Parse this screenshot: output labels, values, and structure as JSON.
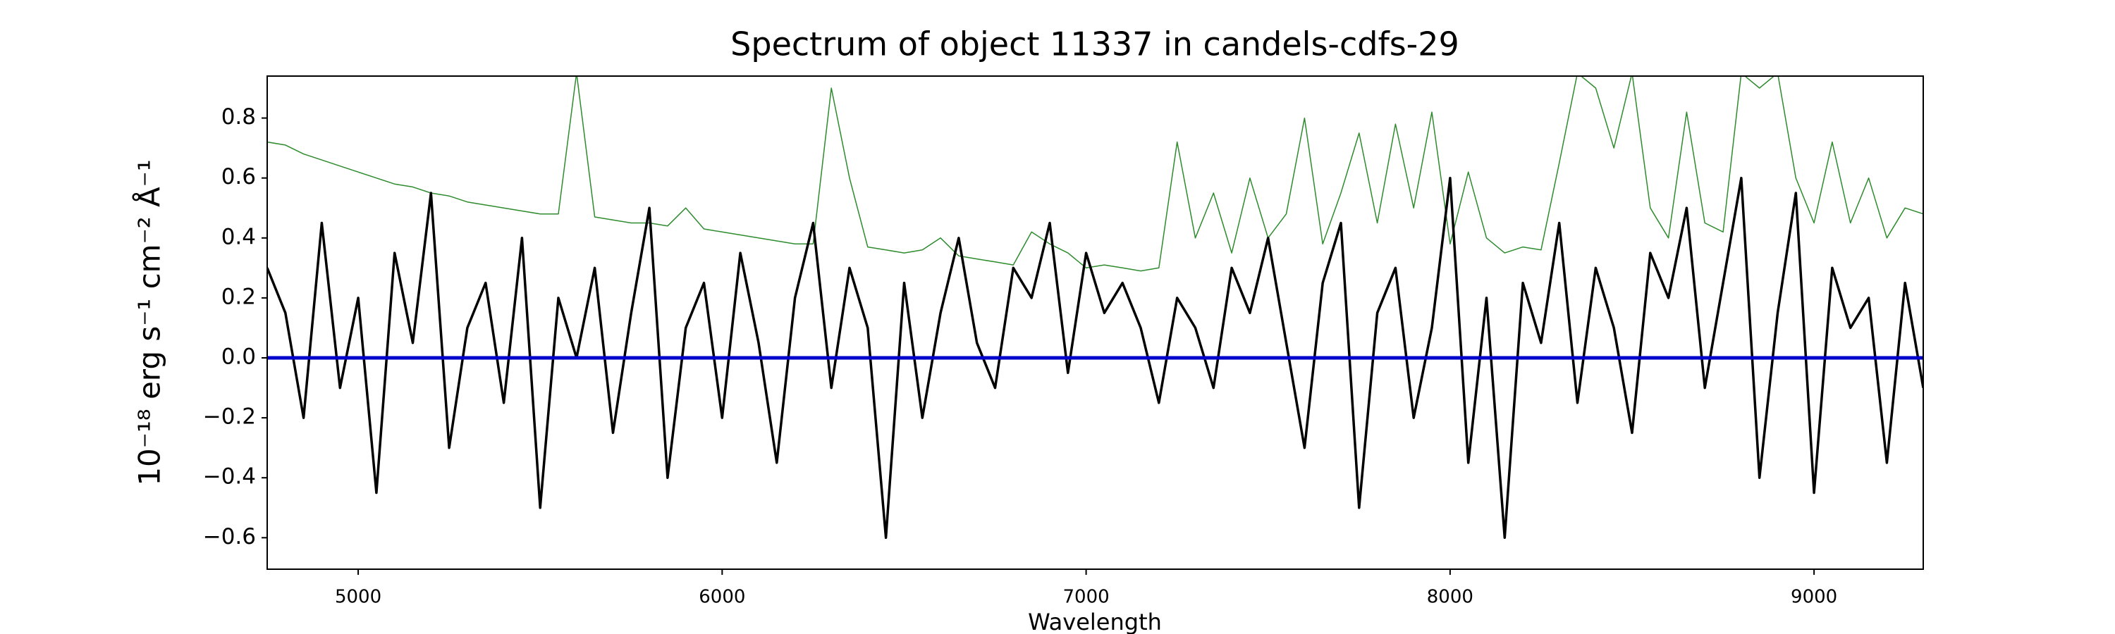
{
  "chart_data": {
    "type": "line",
    "title": "Spectrum of object 11337 in candels-cdfs-29",
    "xlabel": "Wavelength",
    "ylabel": "10⁻¹⁸ erg s⁻¹ cm⁻² Å⁻¹",
    "x": [
      4750,
      4800,
      4850,
      4900,
      4950,
      5000,
      5050,
      5100,
      5150,
      5200,
      5250,
      5300,
      5350,
      5400,
      5450,
      5500,
      5550,
      5600,
      5650,
      5700,
      5750,
      5800,
      5850,
      5900,
      5950,
      6000,
      6050,
      6100,
      6150,
      6200,
      6250,
      6300,
      6350,
      6400,
      6450,
      6500,
      6550,
      6600,
      6650,
      6700,
      6750,
      6800,
      6850,
      6900,
      6950,
      7000,
      7050,
      7100,
      7150,
      7200,
      7250,
      7300,
      7350,
      7400,
      7450,
      7500,
      7550,
      7600,
      7650,
      7700,
      7750,
      7800,
      7850,
      7900,
      7950,
      8000,
      8050,
      8100,
      8150,
      8200,
      8250,
      8300,
      8350,
      8400,
      8450,
      8500,
      8550,
      8600,
      8650,
      8700,
      8750,
      8800,
      8850,
      8900,
      8950,
      9000,
      9050,
      9100,
      9150,
      9200,
      9250,
      9300
    ],
    "series": [
      {
        "color": "#2e8b2e",
        "width": 1.5,
        "values": [
          0.72,
          0.71,
          0.68,
          0.66,
          0.64,
          0.62,
          0.6,
          0.58,
          0.57,
          0.55,
          0.54,
          0.52,
          0.51,
          0.5,
          0.49,
          0.48,
          0.48,
          0.95,
          0.47,
          0.46,
          0.45,
          0.45,
          0.44,
          0.5,
          0.43,
          0.42,
          0.41,
          0.4,
          0.39,
          0.38,
          0.38,
          0.9,
          0.6,
          0.37,
          0.36,
          0.35,
          0.36,
          0.4,
          0.34,
          0.33,
          0.32,
          0.31,
          0.42,
          0.38,
          0.35,
          0.3,
          0.31,
          0.3,
          0.29,
          0.3,
          0.72,
          0.4,
          0.55,
          0.35,
          0.6,
          0.4,
          0.48,
          0.8,
          0.38,
          0.55,
          0.75,
          0.45,
          0.78,
          0.5,
          0.82,
          0.38,
          0.62,
          0.4,
          0.35,
          0.37,
          0.36,
          0.65,
          0.95,
          0.9,
          0.7,
          0.95,
          0.5,
          0.4,
          0.82,
          0.45,
          0.42,
          0.95,
          0.9,
          0.95,
          0.6,
          0.45,
          0.72,
          0.45,
          0.6,
          0.4,
          0.5,
          0.48
        ]
      },
      {
        "color": "#000000",
        "width": 3.5,
        "values": [
          0.3,
          0.15,
          -0.2,
          0.45,
          -0.1,
          0.2,
          -0.45,
          0.35,
          0.05,
          0.55,
          -0.3,
          0.1,
          0.25,
          -0.15,
          0.4,
          -0.5,
          0.2,
          0.0,
          0.3,
          -0.25,
          0.15,
          0.5,
          -0.4,
          0.1,
          0.25,
          -0.2,
          0.35,
          0.05,
          -0.35,
          0.2,
          0.45,
          -0.1,
          0.3,
          0.1,
          -0.6,
          0.25,
          -0.2,
          0.15,
          0.4,
          0.05,
          -0.1,
          0.3,
          0.2,
          0.45,
          -0.05,
          0.35,
          0.15,
          0.25,
          0.1,
          -0.15,
          0.2,
          0.1,
          -0.1,
          0.3,
          0.15,
          0.4,
          0.05,
          -0.3,
          0.25,
          0.45,
          -0.5,
          0.15,
          0.3,
          -0.2,
          0.1,
          0.6,
          -0.35,
          0.2,
          -0.6,
          0.25,
          0.05,
          0.45,
          -0.15,
          0.3,
          0.1,
          -0.25,
          0.35,
          0.2,
          0.5,
          -0.1,
          0.25,
          0.6,
          -0.4,
          0.15,
          0.55,
          -0.45,
          0.3,
          0.1,
          0.2,
          -0.35,
          0.25,
          -0.1
        ]
      },
      {
        "color": "#0000cc",
        "width": 5,
        "x": [
          4750,
          9300
        ],
        "values": [
          0,
          0
        ]
      }
    ],
    "xlim": [
      4750,
      9300
    ],
    "ylim": [
      -0.705,
      0.94
    ],
    "xticks": [
      5000,
      6000,
      7000,
      8000,
      9000
    ],
    "yticks": [
      {
        "value": -0.6,
        "label": "−0.6"
      },
      {
        "value": -0.4,
        "label": "−0.4"
      },
      {
        "value": -0.2,
        "label": "−0.2"
      },
      {
        "value": 0,
        "label": "0.0"
      },
      0.2,
      0.4,
      0.6,
      0.8
    ],
    "grid": false
  }
}
